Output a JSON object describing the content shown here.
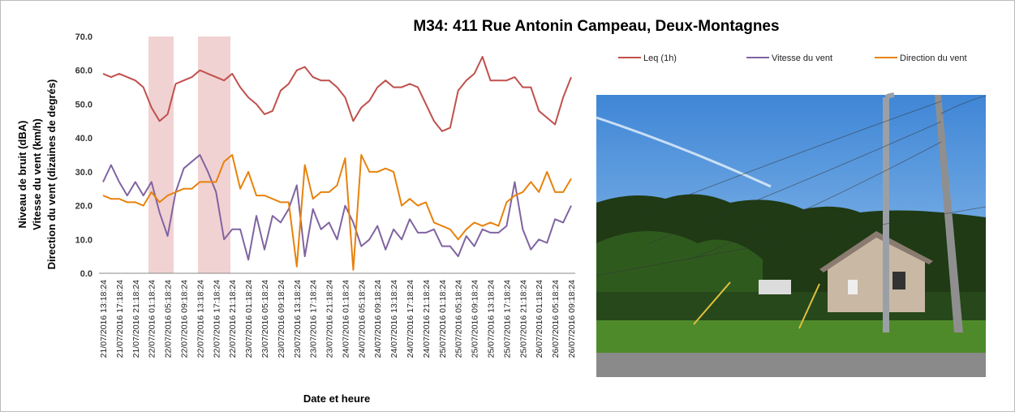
{
  "chart_data": {
    "type": "line",
    "title": "M34: 411 Rue Antonin Campeau, Deux-Montagnes",
    "y_label": [
      "Niveau de bruit (dBA)",
      "Vitesse du vent (km/h)",
      "Direction du vent (dizaines de degrés)"
    ],
    "x_label": "Date et heure",
    "categories": [
      "21/07/2016 13:18:24",
      null,
      "21/07/2016 17:18:24",
      null,
      "21/07/2016 21:18:24",
      null,
      "22/07/2016 01:18:24",
      null,
      "22/07/2016 05:18:24",
      null,
      "22/07/2016 09:18:24",
      null,
      "22/07/2016 13:18:24",
      null,
      "22/07/2016 17:18:24",
      null,
      "22/07/2016 21:18:24",
      null,
      "23/07/2016 01:18:24",
      null,
      "23/07/2016 05:18:24",
      null,
      "23/07/2016 09:18:24",
      null,
      "23/07/2016 13:18:24",
      null,
      "23/07/2016 17:18:24",
      null,
      "23/07/2016 21:18:24",
      null,
      "24/07/2016 01:18:24",
      null,
      "24/07/2016 05:18:24",
      null,
      "24/07/2016 09:18:24",
      null,
      "24/07/2016 13:18:24",
      null,
      "24/07/2016 17:18:24",
      null,
      "24/07/2016 21:18:24",
      null,
      "25/07/2016 01:18:24",
      null,
      "25/07/2016 05:18:24",
      null,
      "25/07/2016 09:18:24",
      null,
      "25/07/2016 13:18:24",
      null,
      "25/07/2016 17:18:24",
      null,
      "25/07/2016 21:18:24",
      null,
      "26/07/2016 01:18:24",
      null,
      "26/07/2016 05:18:24",
      null,
      "26/07/2016 09:18:24"
    ],
    "series": [
      {
        "name": "Leq (1h)",
        "color": "#c0504d",
        "values": [
          59,
          58,
          59,
          58,
          57,
          55,
          49,
          45,
          47,
          56,
          57,
          58,
          60,
          59,
          58,
          57,
          59,
          55,
          52,
          50,
          47,
          48,
          54,
          56,
          60,
          61,
          58,
          57,
          57,
          55,
          52,
          45,
          49,
          51,
          55,
          57,
          55,
          55,
          56,
          55,
          50,
          45,
          42,
          43,
          54,
          57,
          59,
          64,
          57,
          57,
          57,
          58,
          55,
          55,
          48,
          46,
          44,
          52,
          58
        ]
      },
      {
        "name": "Vitesse du vent",
        "color": "#8064a2",
        "values": [
          27,
          32,
          27,
          23,
          27,
          23,
          27,
          18,
          11,
          24,
          31,
          33,
          35,
          30,
          24,
          10,
          13,
          13,
          4,
          17,
          7,
          17,
          15,
          19,
          26,
          5,
          19,
          13,
          15,
          10,
          20,
          15,
          8,
          10,
          14,
          7,
          13,
          10,
          16,
          12,
          12,
          13,
          8,
          8,
          5,
          11,
          8,
          13,
          12,
          12,
          14,
          27,
          13,
          7,
          10,
          9,
          16,
          15,
          20
        ]
      },
      {
        "name": "Direction du vent",
        "color": "#e8820c",
        "values": [
          23,
          22,
          22,
          21,
          21,
          20,
          24,
          21,
          23,
          24,
          25,
          25,
          27,
          27,
          27,
          33,
          35,
          25,
          30,
          23,
          23,
          22,
          21,
          21,
          2,
          32,
          22,
          24,
          24,
          26,
          34,
          1,
          35,
          30,
          30,
          31,
          30,
          20,
          22,
          20,
          21,
          15,
          14,
          13,
          10,
          13,
          15,
          14,
          15,
          14,
          21,
          23,
          24,
          27,
          24,
          30,
          24,
          24,
          28
        ]
      }
    ],
    "ylim": [
      0,
      70
    ],
    "yticks": [
      {
        "value": 0,
        "label": "0.0"
      },
      {
        "value": 10,
        "label": "10.0"
      },
      {
        "value": 20,
        "label": "20.0"
      },
      {
        "value": 30,
        "label": "30.0"
      },
      {
        "value": 40,
        "label": "40.0"
      },
      {
        "value": 50,
        "label": "50.0"
      },
      {
        "value": 60,
        "label": "60.0"
      },
      {
        "value": 70,
        "label": "70.0"
      }
    ],
    "grid": false,
    "legend": "top-right"
  }
}
